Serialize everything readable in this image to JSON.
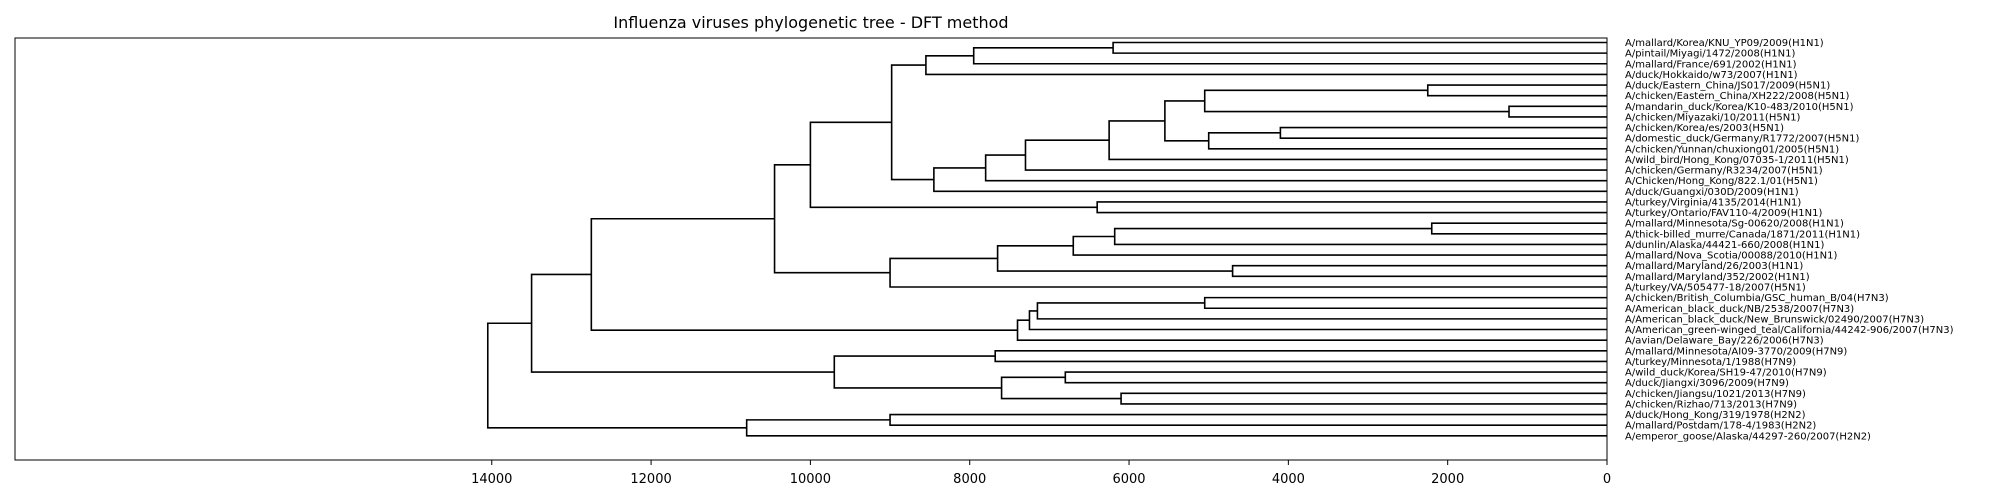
{
  "title": "Influenza viruses phylogenetic tree - DFT method",
  "chart_data": {
    "type": "dendrogram",
    "title": "Influenza viruses phylogenetic tree - DFT method",
    "orientation": "right",
    "x_axis_direction": "reversed",
    "xlim": [
      14700,
      0
    ],
    "xticks": [
      "14000",
      "12000",
      "10000",
      "8000",
      "6000",
      "4000",
      "2000",
      "0"
    ],
    "xtick_values": [
      14000,
      12000,
      10000,
      8000,
      6000,
      4000,
      2000,
      0
    ],
    "grid": false,
    "leaves": [
      "A/mallard/Korea/KNU_YP09/2009(H1N1)",
      "A/pintail/Miyagi/1472/2008(H1N1)",
      "A/mallard/France/691/2002(H1N1)",
      "A/duck/Hokkaido/w73/2007(H1N1)",
      "A/duck/Eastern_China/JS017/2009(H5N1)",
      "A/chicken/Eastern_China/XH222/2008(H5N1)",
      "A/mandarin_duck/Korea/K10-483/2010(H5N1)",
      "A/chicken/Miyazaki/10/2011(H5N1)",
      "A/chicken/Korea/es/2003(H5N1)",
      "A/domestic_duck/Germany/R1772/2007(H5N1)",
      "A/chicken/Yunnan/chuxiong01/2005(H5N1)",
      "A/wild_bird/Hong_Kong/07035-1/2011(H5N1)",
      "A/chicken/Germany/R3234/2007(H5N1)",
      "A/Chicken/Hong_Kong/822.1/01(H5N1)",
      "A/duck/Guangxi/030D/2009(H1N1)",
      "A/turkey/Virginia/4135/2014(H1N1)",
      "A/turkey/Ontario/FAV110-4/2009(H1N1)",
      "A/mallard/Minnesota/Sg-00620/2008(H1N1)",
      "A/thick-billed_murre/Canada/1871/2011(H1N1)",
      "A/dunlin/Alaska/44421-660/2008(H1N1)",
      "A/mallard/Nova_Scotia/00088/2010(H1N1)",
      "A/mallard/Maryland/26/2003(H1N1)",
      "A/mallard/Maryland/352/2002(H1N1)",
      "A/turkey/VA/505477-18/2007(H5N1)",
      "A/chicken/British_Columbia/GSC_human_B/04(H7N3)",
      "A/American_black_duck/NB/2538/2007(H7N3)",
      "A/American_black_duck/New_Brunswick/02490/2007(H7N3)",
      "A/American_green-winged_teal/California/44242-906/2007(H7N3)",
      "A/avian/Delaware_Bay/226/2006(H7N3)",
      "A/mallard/Minnesota/AI09-3770/2009(H7N9)",
      "A/turkey/Minnesota/1/1988(H7N9)",
      "A/wild_duck/Korea/SH19-47/2010(H7N9)",
      "A/duck/Jiangxi/3096/2009(H7N9)",
      "A/chicken/Jiangsu/1021/2013(H7N9)",
      "A/chicken/Rizhao/713/2013(H7N9)",
      "A/duck/Hong_Kong/319/1978(H2N2)",
      "A/mallard/Postdam/178-4/1983(H2N2)",
      "A/emperor_goose/Alaska/44297-260/2007(H2N2)"
    ],
    "merges": [
      {
        "a": 0,
        "b": 1,
        "height": 6200
      },
      {
        "a": "m0",
        "b": 2,
        "height": 7950
      },
      {
        "a": "m1",
        "b": 3,
        "height": 8550
      },
      {
        "a": 4,
        "b": 5,
        "height": 2250
      },
      {
        "a": 6,
        "b": 7,
        "height": 1230
      },
      {
        "a": "m3",
        "b": "m4",
        "height": 5050
      },
      {
        "a": 8,
        "b": 9,
        "height": 4100
      },
      {
        "a": "m6",
        "b": 10,
        "height": 5000
      },
      {
        "a": "m5",
        "b": "m7",
        "height": 5550
      },
      {
        "a": "m8",
        "b": 11,
        "height": 6250
      },
      {
        "a": "m9",
        "b": 12,
        "height": 7300
      },
      {
        "a": "m10",
        "b": 13,
        "height": 7800
      },
      {
        "a": "m11",
        "b": 14,
        "height": 8450
      },
      {
        "a": "m2",
        "b": "m12",
        "height": 8980
      },
      {
        "a": 15,
        "b": 16,
        "height": 6400
      },
      {
        "a": "m13",
        "b": "m14",
        "height": 10000
      },
      {
        "a": 17,
        "b": 18,
        "height": 2200
      },
      {
        "a": "m16",
        "b": 19,
        "height": 6180
      },
      {
        "a": "m17",
        "b": 20,
        "height": 6700
      },
      {
        "a": 21,
        "b": 22,
        "height": 4700
      },
      {
        "a": "m18",
        "b": "m19",
        "height": 7650
      },
      {
        "a": "m20",
        "b": 23,
        "height": 9000
      },
      {
        "a": "m15",
        "b": "m21",
        "height": 10450
      },
      {
        "a": 24,
        "b": 25,
        "height": 5050
      },
      {
        "a": "m23",
        "b": 26,
        "height": 7150
      },
      {
        "a": "m24",
        "b": 27,
        "height": 7250
      },
      {
        "a": "m25",
        "b": 28,
        "height": 7400
      },
      {
        "a": 29,
        "b": 30,
        "height": 7680
      },
      {
        "a": 31,
        "b": 32,
        "height": 6800
      },
      {
        "a": 33,
        "b": 34,
        "height": 6100
      },
      {
        "a": "m28",
        "b": "m29",
        "height": 7600
      },
      {
        "a": "m27",
        "b": "m30",
        "height": 9700
      },
      {
        "a": "m22",
        "b": "m26",
        "height": 12750
      },
      {
        "a": "m32",
        "b": "m31",
        "height": 13500
      },
      {
        "a": 35,
        "b": 36,
        "height": 9000
      },
      {
        "a": "m34",
        "b": 37,
        "height": 10800
      },
      {
        "a": "m33",
        "b": "m35",
        "height": 14050
      }
    ]
  }
}
